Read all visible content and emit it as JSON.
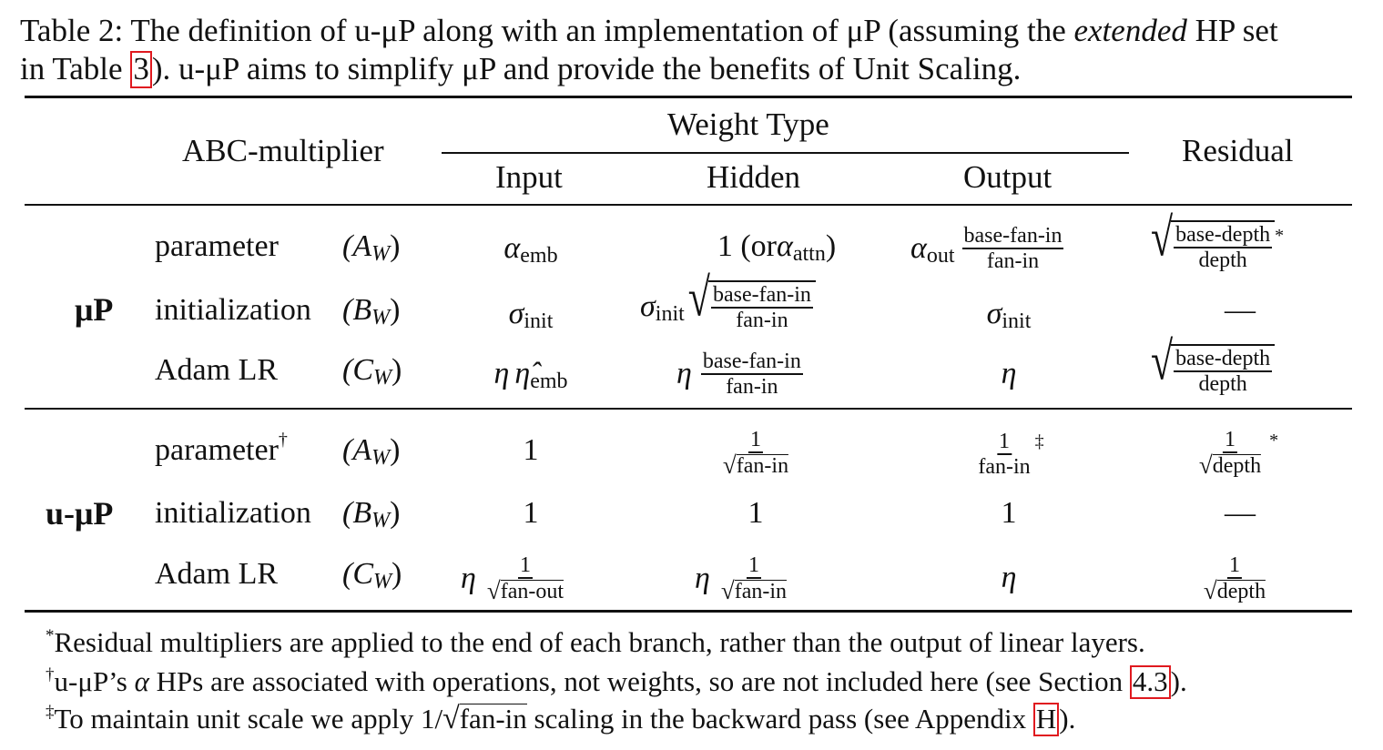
{
  "caption": {
    "line1": "Table 2: The definition of u-μP  along with an implementation of μP (assuming the ",
    "line1_em": "extended",
    "line1_end": " HP set",
    "line2_pre": "in Table ",
    "line2_ref": "3",
    "line2_post": "). u-μP aims to simplify μP and provide the benefits of Unit Scaling."
  },
  "header": {
    "abc": "ABC-multiplier",
    "weight_type": "Weight Type",
    "input": "Input",
    "hidden": "Hidden",
    "output": "Output",
    "residual": "Residual"
  },
  "groups": {
    "mup": "μP",
    "umup": "u-μP"
  },
  "rows": {
    "parameter": "parameter",
    "initialization": "initialization",
    "adam": "Adam LR",
    "A": "(A",
    "B": "(B",
    "C": "(C",
    "W": "W",
    "close": ")"
  },
  "math": {
    "alpha": "α",
    "sigma": "σ",
    "eta": "η",
    "eta_hat": "η̂",
    "emb": "emb",
    "init": "init",
    "out": "out",
    "one": "1",
    "one_or": "1 (or ",
    "attn": "attn",
    "base_fan_in": "base-fan-in",
    "fan_in": "fan-in",
    "fan_out": "fan-out",
    "base_depth": "base-depth",
    "depth": "depth",
    "dash": "—",
    "root": "√",
    "star": "*",
    "dagger": "†",
    "ddagger": "‡"
  },
  "footnotes": {
    "f1_mark": "*",
    "f1": "Residual multipliers are applied to the end of each branch, rather than the output of linear layers.",
    "f2_mark": "†",
    "f2_pre": "u-μP’s ",
    "f2_alpha": "α",
    "f2_mid": " HPs are associated with operations, not weights, so are not included here (see Section ",
    "f2_ref": "4.3",
    "f2_post": ").",
    "f3_mark": "‡",
    "f3_pre": "To maintain unit scale we apply 1/",
    "f3_sqrt": "fan-in",
    "f3_mid": " scaling in the backward pass (see Appendix ",
    "f3_ref": "H",
    "f3_post": ")."
  },
  "colors": {
    "link_box": "#e0191f",
    "text": "#111111"
  }
}
